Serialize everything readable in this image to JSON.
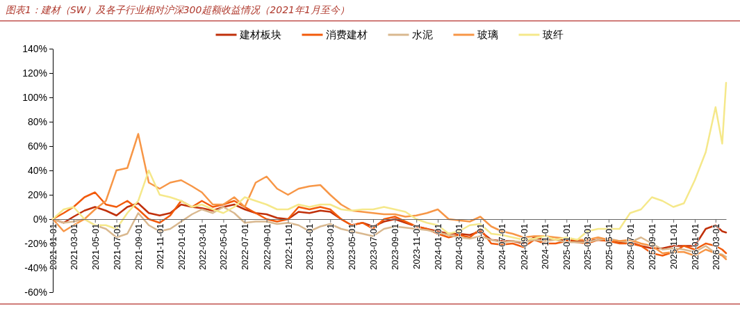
{
  "chart_data": {
    "type": "line",
    "title": "图表1：建材（SW）及各子行业相对沪深300超额收益情况（2021年1月至今）",
    "x": [
      "2021-01-01",
      "2021-02-01",
      "2021-03-01",
      "2021-04-01",
      "2021-05-01",
      "2021-06-01",
      "2021-07-01",
      "2021-08-01",
      "2021-09-01",
      "2021-10-01",
      "2021-11-01",
      "2021-12-01",
      "2022-01-01",
      "2022-02-01",
      "2022-03-01",
      "2022-04-01",
      "2022-05-01",
      "2022-06-01",
      "2022-07-01",
      "2022-08-01",
      "2022-09-01",
      "2022-10-01",
      "2022-11-01",
      "2022-12-01",
      "2023-01-01",
      "2023-02-01",
      "2023-03-01",
      "2023-04-01",
      "2023-05-01",
      "2023-06-01",
      "2023-07-01",
      "2023-08-01",
      "2023-09-01",
      "2023-10-01",
      "2023-11-01",
      "2023-12-01",
      "2024-01-01",
      "2024-02-01",
      "2024-03-01",
      "2024-04-01",
      "2024-05-01",
      "2024-06-01",
      "2024-07-01",
      "2024-08-01",
      "2024-09-01",
      "2024-10-01",
      "2024-11-01",
      "2024-12-01",
      "2025-01-01",
      "2025-02-01",
      "2025-03-01",
      "2025-04-01",
      "2025-05-01",
      "2025-06-01",
      "2025-07-01",
      "2025-08-01",
      "2025-09-01",
      "2025-10-01",
      "2025-11-01",
      "2025-12-01",
      "2026-01-01",
      "2026-02-01",
      "2026-03-01",
      "2026-03-20",
      "2026-03-31"
    ],
    "series": [
      {
        "name": "建材板块",
        "color": "#c0300a",
        "values": [
          0,
          -3,
          2,
          7,
          10,
          7,
          3,
          10,
          13,
          5,
          3,
          5,
          12,
          10,
          9,
          7,
          10,
          12,
          8,
          5,
          4,
          1,
          0,
          6,
          5,
          7,
          6,
          0,
          -5,
          -3,
          -6,
          -2,
          0,
          -3,
          -6,
          -8,
          -10,
          -12,
          -12,
          -13,
          -10,
          -17,
          -18,
          -18,
          -20,
          -15,
          -17,
          -17,
          -17,
          -18,
          -18,
          -17,
          -18,
          -19,
          -19,
          -22,
          -24,
          -24,
          -22,
          -22,
          -22,
          -8,
          -5,
          -10,
          -11
        ]
      },
      {
        "name": "消费建材",
        "color": "#f25a0a",
        "values": [
          0,
          5,
          10,
          18,
          22,
          12,
          10,
          15,
          8,
          0,
          -3,
          3,
          15,
          10,
          15,
          10,
          12,
          15,
          10,
          5,
          0,
          -2,
          0,
          10,
          8,
          10,
          8,
          0,
          -5,
          -3,
          -8,
          0,
          2,
          -2,
          -6,
          -8,
          -12,
          -15,
          -13,
          -15,
          -8,
          -20,
          -21,
          -20,
          -23,
          -17,
          -20,
          -20,
          -18,
          -19,
          -20,
          -17,
          -18,
          -20,
          -20,
          -22,
          -28,
          -30,
          -27,
          -22,
          -25,
          -20,
          -22,
          -25,
          -28
        ]
      },
      {
        "name": "水泥",
        "color": "#d9b88f",
        "values": [
          0,
          -3,
          -2,
          0,
          -5,
          -8,
          -15,
          -12,
          5,
          -5,
          -10,
          -8,
          -2,
          4,
          8,
          5,
          10,
          5,
          -3,
          -2,
          -2,
          -4,
          -3,
          -5,
          -10,
          -6,
          -4,
          -8,
          -10,
          -12,
          -14,
          -8,
          -6,
          -7,
          -8,
          -9,
          -11,
          -13,
          -15,
          -16,
          -14,
          -17,
          -19,
          -18,
          -19,
          -17,
          -18,
          -17,
          -19,
          -19,
          -19,
          -17,
          -16,
          -18,
          -19,
          -15,
          -20,
          -25,
          -24,
          -25,
          -27,
          -22,
          -28,
          -29,
          -31
        ]
      },
      {
        "name": "玻璃",
        "color": "#f79646",
        "values": [
          0,
          -10,
          -5,
          0,
          8,
          15,
          40,
          42,
          70,
          30,
          25,
          30,
          32,
          27,
          22,
          12,
          12,
          18,
          10,
          30,
          35,
          25,
          20,
          25,
          27,
          28,
          20,
          12,
          7,
          6,
          5,
          4,
          4,
          2,
          3,
          5,
          8,
          0,
          -1,
          -2,
          2,
          -6,
          -10,
          -12,
          -15,
          -14,
          -14,
          -15,
          -16,
          -17,
          -17,
          -15,
          -17,
          -18,
          -17,
          -20,
          -22,
          -28,
          -27,
          -27,
          -30,
          -25,
          -28,
          -30,
          -33
        ]
      },
      {
        "name": "玻纤",
        "color": "#f5e88a",
        "values": [
          0,
          8,
          10,
          0,
          -5,
          -5,
          -8,
          5,
          15,
          40,
          20,
          18,
          15,
          10,
          12,
          8,
          5,
          10,
          18,
          15,
          12,
          8,
          8,
          12,
          10,
          12,
          12,
          8,
          7,
          8,
          8,
          10,
          8,
          6,
          0,
          -3,
          -5,
          -12,
          -10,
          -5,
          -4,
          -12,
          -13,
          -15,
          -17,
          -16,
          -14,
          -17,
          -15,
          -17,
          -10,
          -8,
          -8,
          -8,
          5,
          8,
          18,
          15,
          10,
          13,
          32,
          55,
          92,
          62,
          112
        ]
      }
    ],
    "xlim": [
      "2021-01-01",
      "2026-03-31"
    ],
    "xticks": [
      "2021-01-01",
      "2021-03-01",
      "2021-05-01",
      "2021-07-01",
      "2021-09-01",
      "2021-11-01",
      "2022-01-01",
      "2022-03-01",
      "2022-05-01",
      "2022-07-01",
      "2022-09-01",
      "2022-11-01",
      "2023-01-01",
      "2023-03-01",
      "2023-05-01",
      "2023-07-01",
      "2023-09-01",
      "2023-11-01",
      "2024-01-01",
      "2024-03-01",
      "2024-05-01",
      "2024-07-01",
      "2024-09-01",
      "2024-11-01",
      "2025-01-01",
      "2025-03-01",
      "2025-05-01",
      "2025-07-01",
      "2025-09-01",
      "2025-11-01",
      "2026-01-01",
      "2026-03-01"
    ],
    "ylim": [
      -60,
      140
    ],
    "yticks": [
      {
        "value": -60,
        "label": "-60%"
      },
      {
        "value": -40,
        "label": "-40%"
      },
      {
        "value": -20,
        "label": "-20%"
      },
      {
        "value": 0,
        "label": "0%"
      },
      {
        "value": 20,
        "label": "20%"
      },
      {
        "value": 40,
        "label": "40%"
      },
      {
        "value": 60,
        "label": "60%"
      },
      {
        "value": 80,
        "label": "80%"
      },
      {
        "value": 100,
        "label": "100%"
      },
      {
        "value": 120,
        "label": "120%"
      },
      {
        "value": 140,
        "label": "140%"
      }
    ],
    "legend": "top",
    "grid": false,
    "marker": "none",
    "line_style": "solid"
  }
}
